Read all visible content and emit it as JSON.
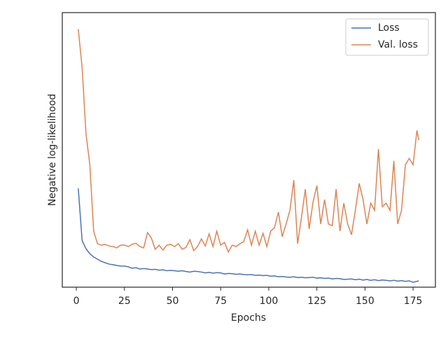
{
  "chart_data": {
    "type": "line",
    "xlabel": "Epochs",
    "ylabel": "Negative log-likelihood",
    "x": [
      1,
      3,
      5,
      7,
      9,
      11,
      13,
      15,
      17,
      19,
      21,
      23,
      25,
      27,
      29,
      31,
      33,
      35,
      37,
      39,
      41,
      43,
      45,
      47,
      49,
      51,
      53,
      55,
      57,
      59,
      61,
      63,
      65,
      67,
      69,
      71,
      73,
      75,
      77,
      79,
      81,
      83,
      85,
      87,
      89,
      91,
      93,
      95,
      97,
      99,
      101,
      103,
      105,
      107,
      109,
      111,
      113,
      115,
      117,
      119,
      121,
      123,
      125,
      127,
      129,
      131,
      133,
      135,
      137,
      139,
      141,
      143,
      145,
      147,
      149,
      151,
      153,
      155,
      157,
      159,
      161,
      163,
      165,
      167,
      169,
      171,
      173,
      175,
      177,
      178
    ],
    "series": [
      {
        "name": "Loss",
        "color": "#4c72b0",
        "values": [
          36,
          17,
          14,
          12.2,
          11,
          10.2,
          9.4,
          8.9,
          8.4,
          8.2,
          7.9,
          7.7,
          7.7,
          7.4,
          6.9,
          7.1,
          6.6,
          6.8,
          6.6,
          6.4,
          6.5,
          6.2,
          6.3,
          6,
          6.1,
          6,
          5.8,
          6,
          5.7,
          5.5,
          5.8,
          5.7,
          5.5,
          5.2,
          5.4,
          5.1,
          5.3,
          5.2,
          4.8,
          5,
          4.9,
          4.7,
          4.8,
          4.6,
          4.5,
          4.6,
          4.3,
          4.4,
          4.2,
          4.3,
          4,
          4.1,
          3.8,
          3.9,
          3.7,
          3.6,
          3.8,
          3.5,
          3.6,
          3.4,
          3.5,
          3.6,
          3.3,
          3.4,
          3.2,
          3.3,
          3,
          3.2,
          3.1,
          2.8,
          2.9,
          3,
          2.7,
          2.9,
          2.6,
          2.8,
          2.5,
          2.7,
          2.4,
          2.6,
          2.5,
          2.3,
          2.5,
          2.2,
          2.4,
          2.1,
          2.3,
          1.8,
          2.1,
          2.3
        ]
      },
      {
        "name": "Val. loss",
        "color": "#dd8452",
        "values": [
          94,
          80,
          56,
          44.6,
          20.4,
          15.8,
          15.3,
          15.6,
          15,
          14.8,
          14.3,
          15.3,
          15.3,
          14.8,
          15.6,
          16,
          14.8,
          14.3,
          19.9,
          17.9,
          13.8,
          15.3,
          13.5,
          15.3,
          15.6,
          14.8,
          15.8,
          13.8,
          14.5,
          17.3,
          13.3,
          14.8,
          17.6,
          15,
          19.4,
          14.8,
          20.4,
          15.3,
          16.3,
          12.8,
          15.3,
          14.8,
          15.8,
          16.6,
          20.9,
          15.3,
          20.4,
          15.3,
          19.6,
          14.8,
          20.4,
          21.7,
          27.3,
          18.4,
          23,
          28,
          39,
          15.8,
          25.5,
          35.7,
          21.2,
          31,
          37,
          23,
          31.9,
          23,
          22.4,
          35.7,
          20.4,
          30.6,
          23,
          19.1,
          28,
          37.8,
          31.9,
          23,
          30.6,
          28,
          50.3,
          29.3,
          30.6,
          28,
          46,
          23,
          28,
          44.6,
          46.9,
          44.6,
          57.1,
          53.6
        ]
      }
    ],
    "xlim": [
      -7.3,
      186.6
    ],
    "xticks": [
      0,
      25,
      50,
      75,
      100,
      125,
      150,
      175
    ],
    "ylim": [
      0,
      100
    ],
    "legend": "upper right"
  }
}
